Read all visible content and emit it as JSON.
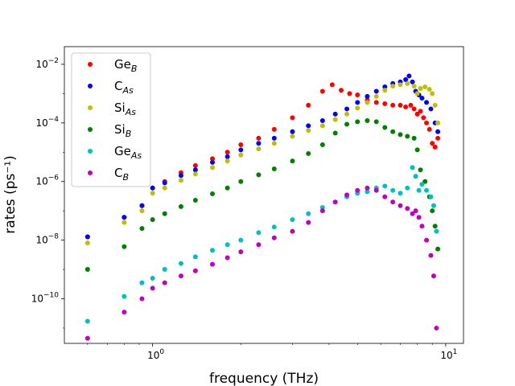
{
  "chart_data": {
    "type": "scatter",
    "title": "",
    "xlabel": "frequency (THz)",
    "ylabel": "rates (ps⁻¹)",
    "xscale": "log",
    "yscale": "log",
    "xlim": [
      0.5,
      11.5
    ],
    "ylim": [
      3e-12,
      0.04
    ],
    "grid": false,
    "legend_position": "top-left",
    "x_ticks": [
      {
        "value": 1,
        "base": "10",
        "exp": "0"
      },
      {
        "value": 10,
        "base": "10",
        "exp": "1"
      }
    ],
    "y_ticks": [
      {
        "value": 1e-10,
        "base": "10",
        "exp": "−10"
      },
      {
        "value": 1e-08,
        "base": "10",
        "exp": "−8"
      },
      {
        "value": 1e-06,
        "base": "10",
        "exp": "−6"
      },
      {
        "value": 0.0001,
        "base": "10",
        "exp": "−4"
      },
      {
        "value": 0.01,
        "base": "10",
        "exp": "−2"
      }
    ],
    "series": [
      {
        "name": "Ge",
        "sub": "B",
        "color": "#ff0000",
        "x": [
          0.6,
          0.8,
          0.92,
          1.0,
          1.1,
          1.25,
          1.4,
          1.6,
          1.8,
          2.0,
          2.3,
          2.6,
          3.0,
          3.4,
          3.8,
          4.1,
          4.4,
          4.7,
          5.0,
          5.4,
          5.8,
          6.2,
          6.6,
          7.0,
          7.3,
          7.6,
          7.8,
          8.0,
          8.2,
          8.4,
          8.6,
          8.8,
          9.0,
          9.2,
          9.4
        ],
        "y": [
          1.3e-08,
          6e-08,
          1.5e-07,
          6e-07,
          1e-06,
          2e-06,
          3.5e-06,
          6e-06,
          1e-05,
          1.8e-05,
          3e-05,
          6e-05,
          0.00015,
          0.0004,
          0.0012,
          0.002,
          0.0013,
          0.001,
          0.0009,
          0.0006,
          0.0005,
          0.00045,
          0.0004,
          0.0004,
          0.00035,
          0.0004,
          0.0003,
          0.0002,
          0.00025,
          0.00015,
          0.0001,
          6e-05,
          2e-05,
          1.5e-05,
          3e-05
        ]
      },
      {
        "name": "C",
        "sub": "As",
        "color": "#0000ff",
        "x": [
          0.6,
          0.8,
          0.92,
          1.0,
          1.1,
          1.25,
          1.4,
          1.6,
          1.8,
          2.0,
          2.3,
          2.6,
          3.0,
          3.4,
          3.8,
          4.2,
          4.6,
          5.0,
          5.4,
          5.8,
          6.2,
          6.6,
          7.0,
          7.3,
          7.5,
          7.7,
          7.9,
          8.1,
          8.3,
          8.6,
          8.9,
          9.2,
          9.4
        ],
        "y": [
          1.3e-08,
          6e-08,
          1.5e-07,
          6e-07,
          9e-07,
          1.6e-06,
          2.5e-06,
          4.5e-06,
          7e-06,
          1.2e-05,
          2e-05,
          3e-05,
          5e-05,
          8e-05,
          0.00012,
          0.0002,
          0.0003,
          0.0005,
          0.0008,
          0.0012,
          0.0017,
          0.0022,
          0.0025,
          0.003,
          0.004,
          0.0025,
          0.0012,
          0.0009,
          0.0007,
          0.0005,
          0.0003,
          0.0001,
          5e-05
        ]
      },
      {
        "name": "Si",
        "sub": "As",
        "color": "#bfbf00",
        "x": [
          0.6,
          0.8,
          0.92,
          1.0,
          1.1,
          1.25,
          1.4,
          1.6,
          1.8,
          2.0,
          2.3,
          2.6,
          3.0,
          3.4,
          3.8,
          4.2,
          4.6,
          5.0,
          5.4,
          5.8,
          6.2,
          6.6,
          7.0,
          7.4,
          7.8,
          8.0,
          8.2,
          8.5,
          8.8,
          9.0,
          9.2,
          9.4
        ],
        "y": [
          8e-09,
          4e-08,
          1e-07,
          4e-07,
          6e-07,
          1.1e-06,
          1.8e-06,
          3e-06,
          5e-06,
          8e-06,
          1.3e-05,
          2e-05,
          3.5e-05,
          5.5e-05,
          8e-05,
          0.00013,
          0.0002,
          0.00032,
          0.0005,
          0.0008,
          0.0013,
          0.0018,
          0.002,
          0.0022,
          0.0018,
          0.001,
          0.0015,
          0.0017,
          0.0014,
          0.001,
          0.0004,
          0.0001
        ]
      },
      {
        "name": "Si",
        "sub": "B",
        "color": "#008000",
        "x": [
          0.6,
          0.8,
          0.92,
          1.0,
          1.1,
          1.25,
          1.4,
          1.6,
          1.8,
          2.0,
          2.3,
          2.6,
          3.0,
          3.4,
          3.8,
          4.2,
          4.6,
          5.0,
          5.4,
          5.8,
          6.2,
          6.6,
          7.0,
          7.4,
          7.8,
          8.0,
          8.2,
          8.5,
          8.8,
          9.0,
          9.2,
          9.4
        ],
        "y": [
          1e-09,
          6e-09,
          2.5e-08,
          5e-08,
          8e-08,
          1.4e-07,
          2.3e-07,
          3.8e-07,
          6e-07,
          1e-06,
          1.7e-06,
          2.7e-06,
          5e-06,
          9e-06,
          1.8e-05,
          4.5e-05,
          9e-05,
          0.00011,
          0.00012,
          0.00011,
          7e-05,
          5e-05,
          4e-05,
          3.5e-05,
          3e-05,
          1.2e-05,
          2.5e-06,
          1e-06,
          3e-07,
          1e-07,
          3e-08,
          5e-09
        ]
      },
      {
        "name": "Ge",
        "sub": "As",
        "color": "#00bfbf",
        "x": [
          0.6,
          0.8,
          0.92,
          1.0,
          1.1,
          1.25,
          1.4,
          1.6,
          1.8,
          2.0,
          2.3,
          2.6,
          3.0,
          3.4,
          3.8,
          4.2,
          4.6,
          5.0,
          5.4,
          5.8,
          6.2,
          6.6,
          7.0,
          7.4,
          7.7,
          7.9,
          8.1,
          8.3,
          8.6,
          8.9,
          9.1,
          9.3
        ],
        "y": [
          1.7e-11,
          1.2e-10,
          3.5e-10,
          5e-10,
          1e-09,
          1.6e-09,
          2.7e-09,
          4.5e-09,
          7e-09,
          1e-08,
          1.8e-08,
          2.8e-08,
          5e-08,
          8e-08,
          1.3e-07,
          2e-07,
          3e-07,
          4e-07,
          4.5e-07,
          6e-07,
          7e-07,
          5e-07,
          4e-07,
          6e-07,
          3e-06,
          1.5e-06,
          5e-07,
          8e-07,
          5e-07,
          3e-07,
          1.5e-07,
          2e-08
        ]
      },
      {
        "name": "C",
        "sub": "B",
        "color": "#bf00bf",
        "x": [
          0.6,
          0.8,
          0.92,
          1.0,
          1.1,
          1.25,
          1.4,
          1.6,
          1.8,
          2.0,
          2.3,
          2.6,
          3.0,
          3.4,
          3.8,
          4.2,
          4.6,
          5.0,
          5.4,
          5.8,
          6.2,
          6.6,
          7.0,
          7.4,
          7.7,
          7.9,
          8.1,
          8.3,
          8.6,
          8.9,
          9.1,
          9.3
        ],
        "y": [
          4.5e-12,
          3.5e-11,
          1e-10,
          2.3e-10,
          3.5e-10,
          6e-10,
          9e-10,
          1.5e-09,
          2.5e-09,
          4e-09,
          7e-09,
          1.2e-08,
          2e-08,
          4e-08,
          1e-07,
          2e-07,
          3.5e-07,
          5e-07,
          6e-07,
          5e-07,
          3e-07,
          2e-07,
          1.5e-07,
          1.2e-07,
          8e-08,
          1e-07,
          6e-08,
          3e-08,
          1e-08,
          3e-09,
          6e-10,
          1e-11
        ]
      }
    ]
  }
}
